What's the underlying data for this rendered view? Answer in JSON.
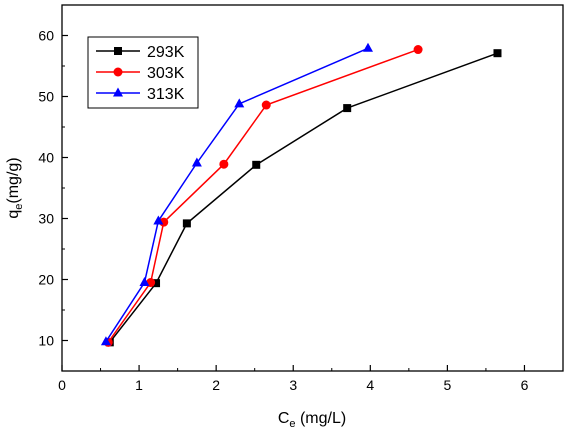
{
  "chart_data": {
    "type": "line",
    "xlabel": {
      "main": "C",
      "sub": "e",
      "rest": " (mg/L)"
    },
    "ylabel": {
      "main": "q",
      "sub": "e",
      "rest": "(mg/g)"
    },
    "xlim": [
      0,
      6.5
    ],
    "ylim": [
      5,
      65
    ],
    "xticks": [
      0,
      1,
      2,
      3,
      4,
      5,
      6
    ],
    "yticks": [
      10,
      20,
      30,
      40,
      50,
      60
    ],
    "grid": false,
    "legend": "top-left",
    "series": [
      {
        "name": "293K",
        "color": "#000000",
        "marker": "square",
        "points": [
          [
            0.62,
            9.7
          ],
          [
            1.22,
            19.4
          ],
          [
            1.62,
            29.2
          ],
          [
            2.52,
            38.8
          ],
          [
            3.7,
            48.1
          ],
          [
            5.65,
            57.1
          ]
        ]
      },
      {
        "name": "303K",
        "color": "#ff0000",
        "marker": "circle",
        "points": [
          [
            0.6,
            9.7
          ],
          [
            1.15,
            19.5
          ],
          [
            1.32,
            29.4
          ],
          [
            2.1,
            38.9
          ],
          [
            2.65,
            48.6
          ],
          [
            4.62,
            57.7
          ]
        ]
      },
      {
        "name": "313K",
        "color": "#0000ff",
        "marker": "triangle",
        "points": [
          [
            0.57,
            9.8
          ],
          [
            1.07,
            19.5
          ],
          [
            1.25,
            29.6
          ],
          [
            1.75,
            39.1
          ],
          [
            2.3,
            48.8
          ],
          [
            3.97,
            57.9
          ]
        ]
      }
    ]
  }
}
